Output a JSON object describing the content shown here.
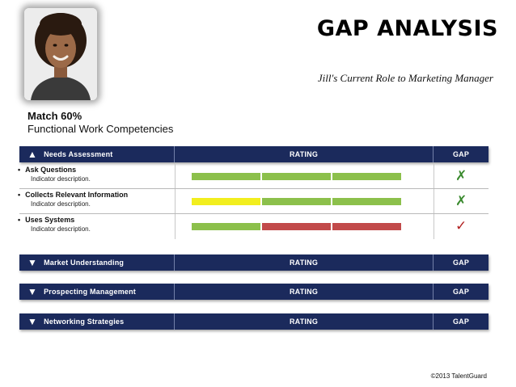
{
  "header": {
    "title": "GAP ANALYSIS",
    "subtitle": "Jill's Current Role to Marketing Manager"
  },
  "profile": {
    "match": "Match 60%",
    "competency_group": "Functional Work Competencies"
  },
  "columns": {
    "rating": "RATING",
    "gap": "GAP"
  },
  "sections": [
    {
      "name": "Needs Assessment",
      "expanded": true,
      "icon": "triangle-up-icon"
    },
    {
      "name": "Market Understanding",
      "expanded": false,
      "icon": "triangle-down-icon"
    },
    {
      "name": "Prospecting Management",
      "expanded": false,
      "icon": "triangle-down-icon"
    },
    {
      "name": "Networking Strategies",
      "expanded": false,
      "icon": "triangle-down-icon"
    }
  ],
  "items": [
    {
      "name": "Ask Questions",
      "description": "Indicator description.",
      "rating_colors": [
        "#8cc04b",
        "#8cc04b",
        "#8cc04b"
      ],
      "gap_symbol": "✗",
      "gap_color": "#3a8a2e"
    },
    {
      "name": "Collects Relevant Information",
      "description": "Indicator description.",
      "rating_colors": [
        "#f2ee1e",
        "#8cc04b",
        "#8cc04b"
      ],
      "gap_symbol": "✗",
      "gap_color": "#3a8a2e"
    },
    {
      "name": "Uses Systems",
      "description": "Indicator description.",
      "rating_colors": [
        "#8cc04b",
        "#c24a4a",
        "#c24a4a"
      ],
      "gap_symbol": "✓",
      "gap_color": "#b22222"
    }
  ],
  "footer": {
    "copyright": "©2013 TalentGuard"
  }
}
